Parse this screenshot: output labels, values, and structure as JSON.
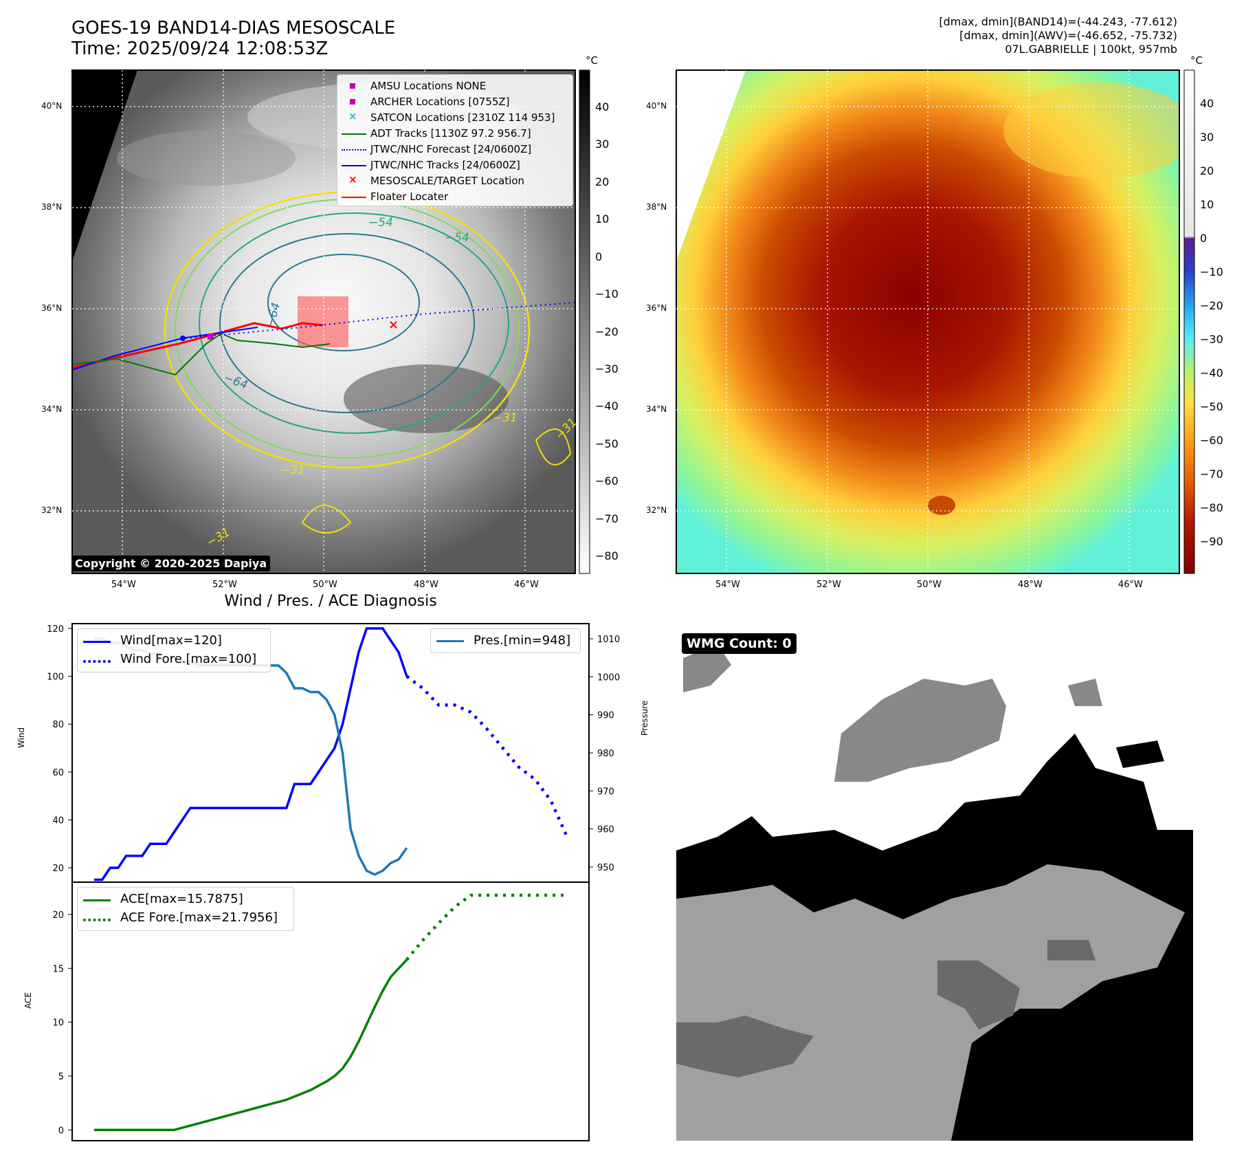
{
  "header": {
    "title_line1": "GOES-19 BAND14-DIAS MESOSCALE",
    "title_line2": "Time: 2025/09/24 12:08:53Z",
    "info_line1": "[dmax, dmin](BAND14)=(-44.243, -77.612)",
    "info_line2": "[dmax, dmin](AWV)=(-46.652, -75.732)",
    "info_line3": "07L.GABRIELLE | 100kt, 957mb"
  },
  "map_axes": {
    "lat_labels": [
      "40°N",
      "38°N",
      "36°N",
      "34°N",
      "32°N"
    ],
    "lon_labels": [
      "54°W",
      "52°W",
      "50°W",
      "48°W",
      "46°W"
    ]
  },
  "ir_panel": {
    "colorbar_unit": "°C",
    "colorbar_ticks": [
      "40",
      "30",
      "20",
      "10",
      "0",
      "−10",
      "−20",
      "−30",
      "−40",
      "−50",
      "−60",
      "−70",
      "−80"
    ],
    "contour_labels": [
      "−54",
      "−54",
      "−64",
      "−64",
      "−31",
      "−31",
      "−31",
      "−31"
    ],
    "copyright": "Copyright © 2020-2025 Dapiya",
    "legend": [
      {
        "label": "AMSU Locations NONE",
        "color": "#bf00bf",
        "marker": "square"
      },
      {
        "label": "ARCHER Locations [0755Z]",
        "color": "#bf00bf",
        "marker": "square"
      },
      {
        "label": "SATCON Locations [2310Z 114 953]",
        "color": "#17becf",
        "marker": "x"
      },
      {
        "label": "ADT Tracks [1130Z 97.2 956.7]",
        "color": "#007a00",
        "marker": "line"
      },
      {
        "label": "JTWC/NHC Forecast [24/0600Z]",
        "color": "#0000ff",
        "marker": "dotted"
      },
      {
        "label": "JTWC/NHC Tracks [24/0600Z]",
        "color": "#0000ff",
        "marker": "line-dot"
      },
      {
        "label": "MESOSCALE/TARGET Location",
        "color": "#ff0000",
        "marker": "x"
      },
      {
        "label": "Floater Locater",
        "color": "#ff0000",
        "marker": "line"
      }
    ]
  },
  "awv_panel": {
    "colorbar_unit": "°C",
    "colorbar_ticks": [
      "40",
      "30",
      "20",
      "10",
      "0",
      "−10",
      "−20",
      "−30",
      "−40",
      "−50",
      "−60",
      "−70",
      "−80",
      "−90"
    ]
  },
  "wmg_panel": {
    "label": "WMG Count: 0"
  },
  "chart_data": [
    {
      "type": "line",
      "title": "Wind / Pres. / ACE Diagnosis",
      "xlabel": "",
      "ylabel": "Wind",
      "ylabel_right": "Pressure",
      "ylim": [
        14,
        122
      ],
      "ylim_right": [
        946,
        1014
      ],
      "yticks": [
        20,
        40,
        60,
        80,
        100,
        120
      ],
      "yticks_right": [
        950,
        960,
        970,
        980,
        990,
        1000,
        1010
      ],
      "series": [
        {
          "name": "Wind[max=120]",
          "color": "#0000ff",
          "style": "solid",
          "axis": "left",
          "x": [
            0,
            1,
            2,
            3,
            4,
            5,
            6,
            7,
            8,
            9,
            10,
            11,
            12,
            13,
            14,
            15,
            16,
            17,
            18,
            19,
            20,
            21,
            22,
            23,
            24,
            25,
            26,
            27,
            28,
            29,
            30,
            31,
            32,
            33,
            34,
            35,
            36,
            37,
            38,
            39
          ],
          "values": [
            15,
            15,
            20,
            20,
            25,
            25,
            25,
            30,
            30,
            30,
            35,
            40,
            45,
            45,
            45,
            45,
            45,
            45,
            45,
            45,
            45,
            45,
            45,
            45,
            45,
            55,
            55,
            55,
            60,
            65,
            70,
            80,
            95,
            110,
            120,
            120,
            120,
            115,
            110,
            100
          ]
        },
        {
          "name": "Wind Fore.[max=100]",
          "color": "#0000ff",
          "style": "dotted",
          "axis": "left",
          "x": [
            39,
            41,
            43,
            45,
            47,
            49,
            51,
            53,
            55,
            57,
            59
          ],
          "values": [
            100,
            95,
            88,
            88,
            85,
            78,
            70,
            62,
            57,
            48,
            33
          ]
        },
        {
          "name": "Pres.[min=948]",
          "color": "#1f77b4",
          "style": "solid",
          "axis": "right",
          "x": [
            0,
            1,
            2,
            3,
            4,
            5,
            6,
            7,
            8,
            9,
            10,
            11,
            12,
            13,
            14,
            15,
            16,
            17,
            18,
            19,
            20,
            21,
            22,
            23,
            24,
            25,
            26,
            27,
            28,
            29,
            30,
            31,
            32,
            33,
            34,
            35,
            36,
            37,
            38,
            39
          ],
          "values": [
            1010,
            1010,
            1009,
            1009,
            1008,
            1007,
            1007,
            1006,
            1006,
            1005,
            1005,
            1004,
            1004,
            1003,
            1003,
            1003,
            1003,
            1003,
            1003,
            1003,
            1003,
            1003,
            1003,
            1003,
            1001,
            997,
            997,
            996,
            996,
            994,
            990,
            980,
            960,
            953,
            949,
            948,
            949,
            951,
            952,
            955
          ]
        }
      ]
    },
    {
      "type": "line",
      "title": "",
      "xlabel": "",
      "ylabel": "ACE",
      "ylim": [
        -1,
        23
      ],
      "yticks": [
        0,
        5,
        10,
        15,
        20
      ],
      "series": [
        {
          "name": "ACE[max=15.7875]",
          "color": "#008000",
          "style": "solid",
          "x": [
            0,
            2,
            4,
            6,
            8,
            10,
            12,
            14,
            16,
            18,
            20,
            22,
            24,
            25,
            26,
            27,
            28,
            29,
            30,
            31,
            32,
            33,
            34,
            35,
            36,
            37,
            38,
            39
          ],
          "values": [
            0,
            0,
            0,
            0,
            0,
            0,
            0.4,
            0.8,
            1.2,
            1.6,
            2.0,
            2.4,
            2.8,
            3.1,
            3.4,
            3.7,
            4.1,
            4.5,
            5.0,
            5.7,
            6.8,
            8.2,
            9.8,
            11.4,
            12.9,
            14.2,
            15.0,
            15.79
          ]
        },
        {
          "name": "ACE Fore.[max=21.7956]",
          "color": "#008000",
          "style": "dotted",
          "x": [
            39,
            41,
            43,
            45,
            47,
            49,
            51,
            53,
            55,
            57,
            59
          ],
          "values": [
            15.79,
            17.6,
            19.2,
            20.7,
            21.79,
            21.79,
            21.79,
            21.79,
            21.79,
            21.79,
            21.79
          ]
        }
      ]
    }
  ]
}
